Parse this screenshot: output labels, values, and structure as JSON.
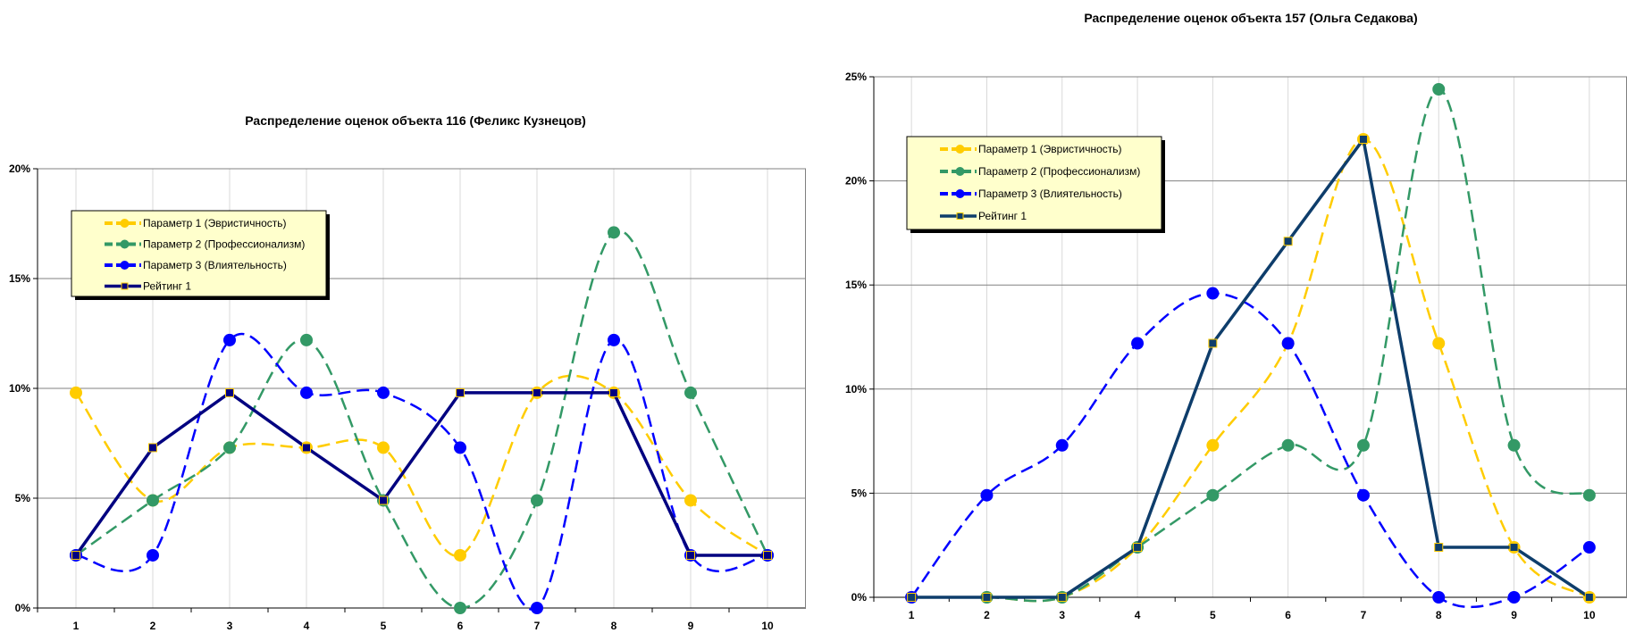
{
  "chart_data": [
    {
      "type": "line",
      "title": "Распределение оценок объекта 116 (Феликс Кузнецов)",
      "categories": [
        "1",
        "2",
        "3",
        "4",
        "5",
        "6",
        "7",
        "8",
        "9",
        "10"
      ],
      "y_tick_labels": [
        "0%",
        "5%",
        "10%",
        "15%",
        "20%"
      ],
      "ylim": [
        0,
        20
      ],
      "grid": true,
      "legend_position": "top-left",
      "series": [
        {
          "name": "Параметр 1 (Эвристичность)",
          "color": "#FFCC00",
          "style": "dashed-smooth",
          "marker": "circle",
          "values": [
            9.8,
            4.9,
            7.3,
            7.3,
            7.3,
            2.4,
            9.8,
            9.8,
            4.9,
            2.4
          ]
        },
        {
          "name": "Параметр 2 (Профессионализм)",
          "color": "#339966",
          "style": "dashed-smooth",
          "marker": "circle",
          "values": [
            2.4,
            4.9,
            7.3,
            12.2,
            4.9,
            0.0,
            4.9,
            17.1,
            9.8,
            2.4
          ]
        },
        {
          "name": "Параметр 3 (Влиятельность)",
          "color": "#0000FF",
          "style": "dashed-smooth",
          "marker": "circle",
          "values": [
            2.4,
            2.4,
            12.2,
            9.8,
            9.8,
            7.3,
            0.0,
            12.2,
            2.4,
            2.4
          ]
        },
        {
          "name": "Рейтинг 1",
          "color": "#000080",
          "style": "solid",
          "marker": "square",
          "values": [
            2.4,
            7.3,
            9.8,
            7.3,
            4.9,
            9.8,
            9.8,
            9.8,
            2.4,
            2.4
          ]
        }
      ]
    },
    {
      "type": "line",
      "title": "Распределение оценок объекта 157 (Ольга Седакова)",
      "categories": [
        "1",
        "2",
        "3",
        "4",
        "5",
        "6",
        "7",
        "8",
        "9",
        "10"
      ],
      "y_tick_labels": [
        "0%",
        "5%",
        "10%",
        "15%",
        "20%",
        "25%"
      ],
      "ylim": [
        0,
        25
      ],
      "grid": true,
      "legend_position": "top-left",
      "series": [
        {
          "name": "Параметр 1 (Эвристичность)",
          "color": "#FFCC00",
          "style": "dashed-smooth",
          "marker": "circle",
          "values": [
            0.0,
            0.0,
            0.0,
            2.4,
            7.3,
            12.2,
            22.0,
            12.2,
            2.4,
            0.0
          ]
        },
        {
          "name": "Параметр 2 (Профессионализм)",
          "color": "#339966",
          "style": "dashed-smooth",
          "marker": "circle",
          "values": [
            0.0,
            0.0,
            0.0,
            2.4,
            4.9,
            7.3,
            7.3,
            24.4,
            7.3,
            4.9
          ]
        },
        {
          "name": "Параметр 3 (Влиятельность)",
          "color": "#0000FF",
          "style": "dashed-smooth",
          "marker": "circle",
          "values": [
            0.0,
            4.9,
            7.3,
            12.2,
            14.6,
            12.2,
            4.9,
            0.0,
            0.0,
            2.4
          ]
        },
        {
          "name": "Рейтинг 1",
          "color": "#0E3D6B",
          "style": "solid",
          "marker": "square",
          "values": [
            0.0,
            0.0,
            0.0,
            2.4,
            12.2,
            17.1,
            22.0,
            2.4,
            2.4,
            0.0
          ]
        }
      ]
    }
  ]
}
